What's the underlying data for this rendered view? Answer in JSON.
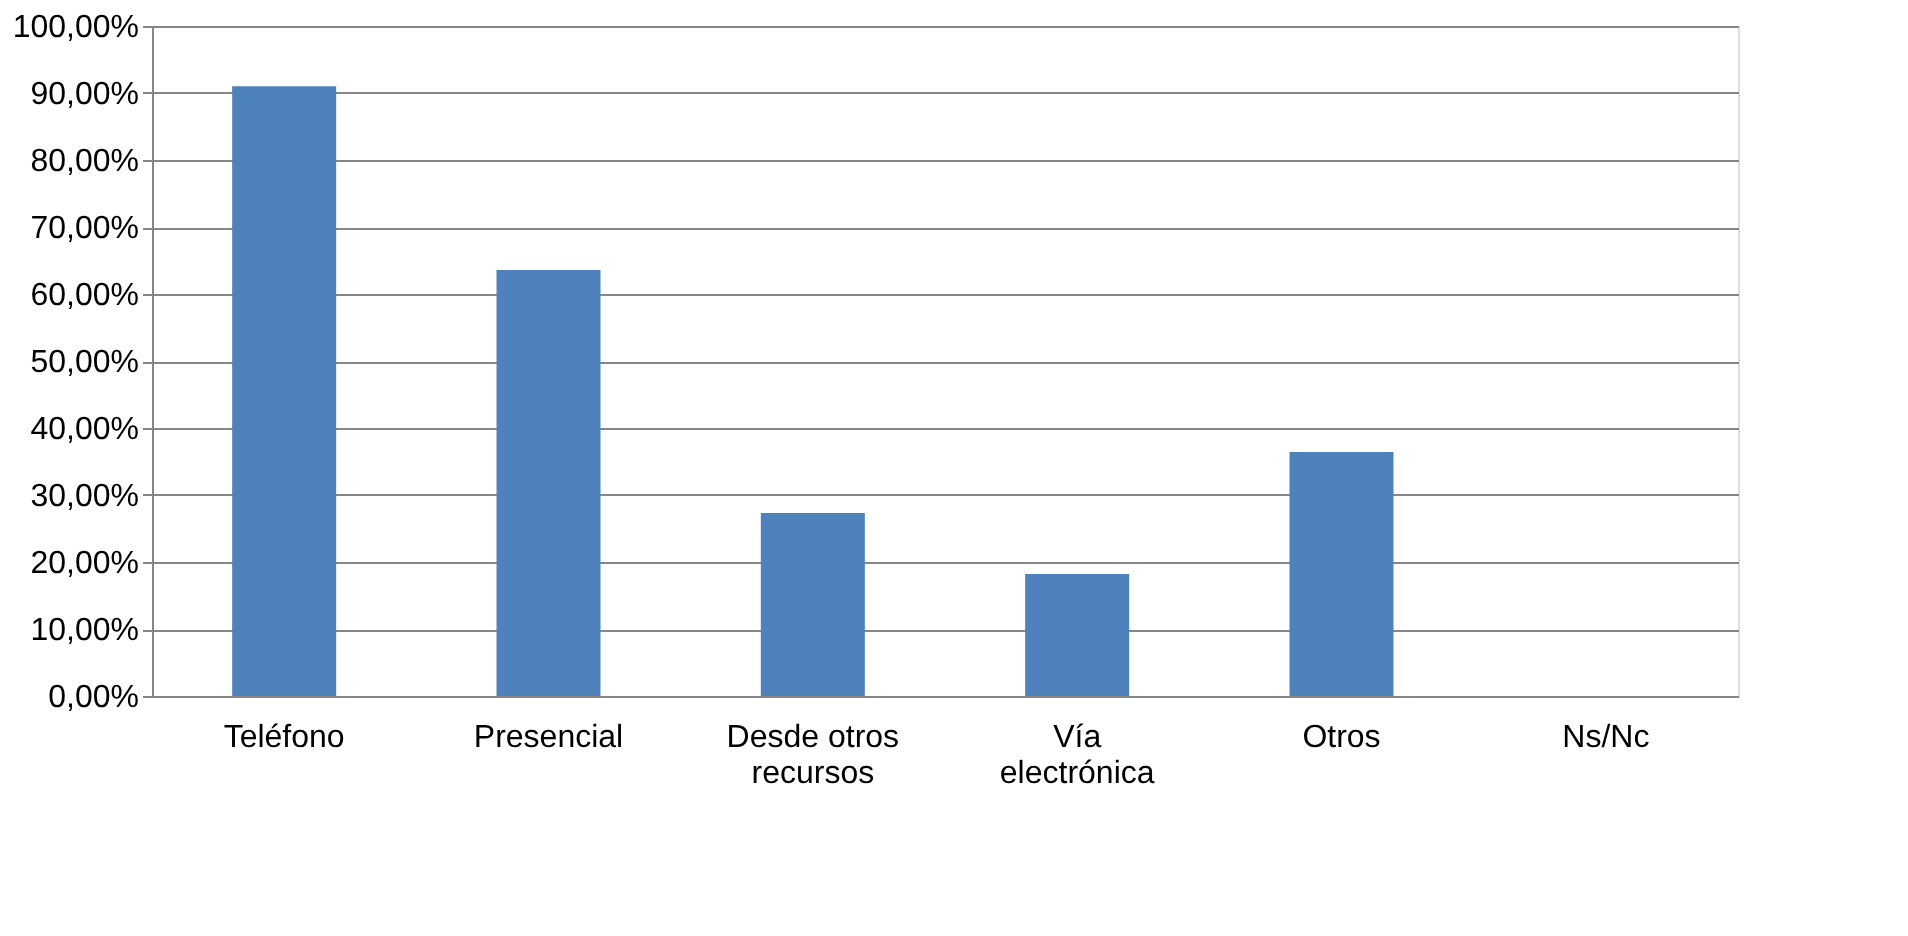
{
  "chart_data": {
    "type": "bar",
    "categories": [
      "Teléfono",
      "Presencial",
      "Desde otros recursos",
      "Vía electrónica",
      "Otros",
      "Ns/Nc"
    ],
    "values": [
      91,
      63.6,
      27.3,
      18.2,
      36.4,
      0
    ],
    "color": "#4f81bd",
    "ylim": [
      0,
      100
    ],
    "yticks": [
      {
        "value": 0,
        "label": "0,00%"
      },
      {
        "value": 10,
        "label": "10,00%"
      },
      {
        "value": 20,
        "label": "20,00%"
      },
      {
        "value": 30,
        "label": "30,00%"
      },
      {
        "value": 40,
        "label": "40,00%"
      },
      {
        "value": 50,
        "label": "50,00%"
      },
      {
        "value": 60,
        "label": "60,00%"
      },
      {
        "value": 70,
        "label": "70,00%"
      },
      {
        "value": 80,
        "label": "80,00%"
      },
      {
        "value": 90,
        "label": "90,00%"
      },
      {
        "value": 100,
        "label": "100,00%"
      }
    ],
    "grid": "y"
  }
}
